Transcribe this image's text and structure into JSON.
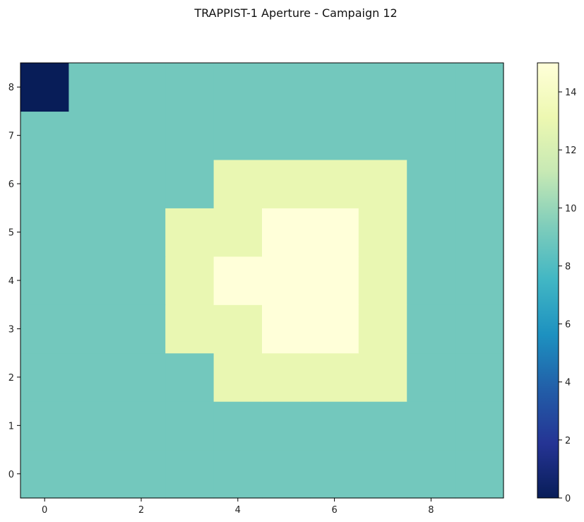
{
  "chart_data": {
    "type": "heatmap",
    "title": "TRAPPIST-1 Aperture - Campaign 12",
    "xlabel": "",
    "ylabel": "",
    "n_cols": 10,
    "n_rows": 9,
    "origin": "lower",
    "x_ticks": [
      0,
      2,
      4,
      6,
      8
    ],
    "y_ticks": [
      0,
      1,
      2,
      3,
      4,
      5,
      6,
      7,
      8
    ],
    "colormap": "YlGnBu_r",
    "vmin": 0,
    "vmax": 15,
    "colorbar_ticks": [
      0,
      2,
      4,
      6,
      8,
      10,
      12,
      14
    ],
    "colors": {
      "value_0": "#081d58",
      "value_9": "#73c8bd",
      "value_13": "#e9f7b2",
      "value_15": "#ffffd9"
    },
    "values": [
      [
        9,
        9,
        9,
        9,
        9,
        9,
        9,
        9,
        9,
        9
      ],
      [
        9,
        9,
        9,
        9,
        9,
        9,
        9,
        9,
        9,
        9
      ],
      [
        9,
        9,
        9,
        9,
        13,
        13,
        13,
        13,
        9,
        9
      ],
      [
        9,
        9,
        9,
        13,
        13,
        15,
        15,
        13,
        9,
        9
      ],
      [
        9,
        9,
        9,
        13,
        15,
        15,
        15,
        13,
        9,
        9
      ],
      [
        9,
        9,
        9,
        13,
        13,
        15,
        15,
        13,
        9,
        9
      ],
      [
        9,
        9,
        9,
        9,
        13,
        13,
        13,
        13,
        9,
        9
      ],
      [
        9,
        9,
        9,
        9,
        9,
        9,
        9,
        9,
        9,
        9
      ],
      [
        0,
        9,
        9,
        9,
        9,
        9,
        9,
        9,
        9,
        9
      ]
    ]
  }
}
